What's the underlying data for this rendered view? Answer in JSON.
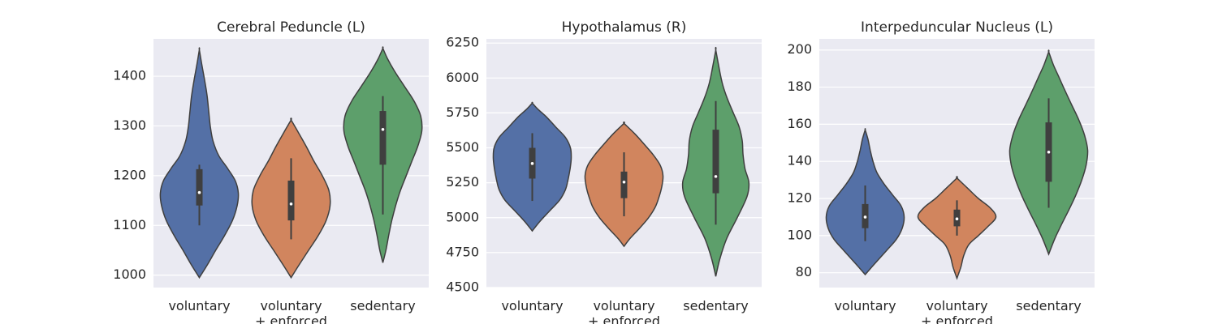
{
  "chart_data": [
    {
      "type": "violin",
      "title": "Cerebral Peduncle (L)",
      "categories": [
        "voluntary",
        "voluntary\n+ enforced",
        "sedentary"
      ],
      "colors": [
        "#5470a6",
        "#d1855e",
        "#5d9f6b"
      ],
      "yticks": [
        1000,
        1100,
        1200,
        1300,
        1400
      ],
      "ylim": [
        975,
        1475
      ],
      "series": [
        {
          "extent": [
            995,
            1453
          ],
          "median": 1166,
          "q1": 1140,
          "q3": 1213,
          "whisker": [
            1100,
            1222
          ],
          "density": [
            [
              995,
              0.0
            ],
            [
              1020,
              0.2
            ],
            [
              1050,
              0.42
            ],
            [
              1080,
              0.65
            ],
            [
              1110,
              0.85
            ],
            [
              1140,
              0.97
            ],
            [
              1165,
              1.0
            ],
            [
              1190,
              0.92
            ],
            [
              1215,
              0.72
            ],
            [
              1240,
              0.5
            ],
            [
              1270,
              0.35
            ],
            [
              1300,
              0.28
            ],
            [
              1330,
              0.24
            ],
            [
              1360,
              0.2
            ],
            [
              1390,
              0.14
            ],
            [
              1420,
              0.07
            ],
            [
              1453,
              0.0
            ]
          ]
        },
        {
          "extent": [
            995,
            1312
          ],
          "median": 1143,
          "q1": 1110,
          "q3": 1190,
          "whisker": [
            1072,
            1235
          ],
          "density": [
            [
              995,
              0.0
            ],
            [
              1020,
              0.2
            ],
            [
              1050,
              0.45
            ],
            [
              1080,
              0.7
            ],
            [
              1110,
              0.9
            ],
            [
              1140,
              1.0
            ],
            [
              1170,
              0.97
            ],
            [
              1200,
              0.8
            ],
            [
              1230,
              0.58
            ],
            [
              1260,
              0.38
            ],
            [
              1285,
              0.2
            ],
            [
              1312,
              0.0
            ]
          ]
        },
        {
          "extent": [
            1025,
            1456
          ],
          "median": 1293,
          "q1": 1222,
          "q3": 1330,
          "whisker": [
            1122,
            1360
          ],
          "density": [
            [
              1025,
              0.0
            ],
            [
              1050,
              0.08
            ],
            [
              1080,
              0.15
            ],
            [
              1110,
              0.23
            ],
            [
              1140,
              0.33
            ],
            [
              1170,
              0.45
            ],
            [
              1200,
              0.6
            ],
            [
              1230,
              0.75
            ],
            [
              1260,
              0.9
            ],
            [
              1290,
              1.0
            ],
            [
              1320,
              0.97
            ],
            [
              1350,
              0.8
            ],
            [
              1380,
              0.55
            ],
            [
              1410,
              0.3
            ],
            [
              1435,
              0.12
            ],
            [
              1456,
              0.0
            ]
          ]
        }
      ]
    },
    {
      "type": "violin",
      "title": "Hypothalamus (R)",
      "categories": [
        "voluntary",
        "voluntary\n+ enforced",
        "sedentary"
      ],
      "colors": [
        "#5470a6",
        "#d1855e",
        "#5d9f6b"
      ],
      "yticks": [
        4500,
        4750,
        5000,
        5250,
        5500,
        5750,
        6000,
        6250
      ],
      "ylim": [
        4500,
        6280
      ],
      "series": [
        {
          "extent": [
            4905,
            5820
          ],
          "median": 5388,
          "q1": 5280,
          "q3": 5500,
          "whisker": [
            5120,
            5605
          ],
          "density": [
            [
              4905,
              0.0
            ],
            [
              4975,
              0.2
            ],
            [
              5050,
              0.45
            ],
            [
              5125,
              0.7
            ],
            [
              5200,
              0.85
            ],
            [
              5275,
              0.92
            ],
            [
              5350,
              0.97
            ],
            [
              5425,
              1.0
            ],
            [
              5500,
              0.98
            ],
            [
              5575,
              0.85
            ],
            [
              5650,
              0.6
            ],
            [
              5725,
              0.35
            ],
            [
              5775,
              0.15
            ],
            [
              5820,
              0.0
            ]
          ]
        },
        {
          "extent": [
            4795,
            5675
          ],
          "median": 5255,
          "q1": 5140,
          "q3": 5330,
          "whisker": [
            5010,
            5468
          ],
          "density": [
            [
              4795,
              0.0
            ],
            [
              4850,
              0.15
            ],
            [
              4925,
              0.4
            ],
            [
              5000,
              0.63
            ],
            [
              5075,
              0.8
            ],
            [
              5150,
              0.9
            ],
            [
              5225,
              0.97
            ],
            [
              5300,
              1.0
            ],
            [
              5375,
              0.93
            ],
            [
              5450,
              0.75
            ],
            [
              5525,
              0.52
            ],
            [
              5600,
              0.28
            ],
            [
              5675,
              0.0
            ]
          ]
        },
        {
          "extent": [
            4580,
            6200
          ],
          "median": 5295,
          "q1": 5175,
          "q3": 5630,
          "whisker": [
            4950,
            5835
          ],
          "density": [
            [
              4580,
              0.0
            ],
            [
              4700,
              0.1
            ],
            [
              4850,
              0.28
            ],
            [
              5000,
              0.55
            ],
            [
              5150,
              0.8
            ],
            [
              5250,
              0.85
            ],
            [
              5350,
              0.75
            ],
            [
              5450,
              0.7
            ],
            [
              5550,
              0.68
            ],
            [
              5650,
              0.6
            ],
            [
              5750,
              0.45
            ],
            [
              5850,
              0.3
            ],
            [
              5950,
              0.18
            ],
            [
              6050,
              0.1
            ],
            [
              6200,
              0.0
            ]
          ]
        }
      ]
    },
    {
      "type": "violin",
      "title": "Interpeduncular Nucleus (L)",
      "categories": [
        "voluntary",
        "voluntary\n+ enforced",
        "sedentary"
      ],
      "colors": [
        "#5470a6",
        "#d1855e",
        "#5d9f6b"
      ],
      "yticks": [
        80,
        100,
        120,
        140,
        160,
        180,
        200
      ],
      "ylim": [
        72,
        206
      ],
      "series": [
        {
          "extent": [
            79,
            157
          ],
          "median": 110,
          "q1": 104,
          "q3": 117,
          "whisker": [
            97,
            127
          ],
          "density": [
            [
              79,
              0.0
            ],
            [
              85,
              0.25
            ],
            [
              92,
              0.55
            ],
            [
              98,
              0.8
            ],
            [
              104,
              0.95
            ],
            [
              110,
              1.0
            ],
            [
              116,
              0.92
            ],
            [
              122,
              0.7
            ],
            [
              128,
              0.48
            ],
            [
              134,
              0.3
            ],
            [
              140,
              0.2
            ],
            [
              146,
              0.13
            ],
            [
              152,
              0.07
            ],
            [
              157,
              0.0
            ]
          ]
        },
        {
          "extent": [
            77,
            131
          ],
          "median": 109,
          "q1": 105,
          "q3": 114,
          "whisker": [
            100,
            119
          ],
          "density": [
            [
              77,
              0.0
            ],
            [
              83,
              0.1
            ],
            [
              89,
              0.17
            ],
            [
              95,
              0.3
            ],
            [
              100,
              0.55
            ],
            [
              105,
              0.8
            ],
            [
              110,
              1.0
            ],
            [
              115,
              0.85
            ],
            [
              120,
              0.55
            ],
            [
              125,
              0.3
            ],
            [
              131,
              0.0
            ]
          ]
        },
        {
          "extent": [
            90,
            199
          ],
          "median": 145,
          "q1": 129,
          "q3": 161,
          "whisker": [
            115,
            174
          ],
          "density": [
            [
              90,
              0.0
            ],
            [
              98,
              0.15
            ],
            [
              106,
              0.33
            ],
            [
              114,
              0.52
            ],
            [
              122,
              0.7
            ],
            [
              130,
              0.85
            ],
            [
              138,
              0.96
            ],
            [
              146,
              1.0
            ],
            [
              154,
              0.92
            ],
            [
              162,
              0.78
            ],
            [
              170,
              0.6
            ],
            [
              178,
              0.42
            ],
            [
              186,
              0.25
            ],
            [
              192,
              0.12
            ],
            [
              199,
              0.0
            ]
          ]
        }
      ]
    }
  ]
}
